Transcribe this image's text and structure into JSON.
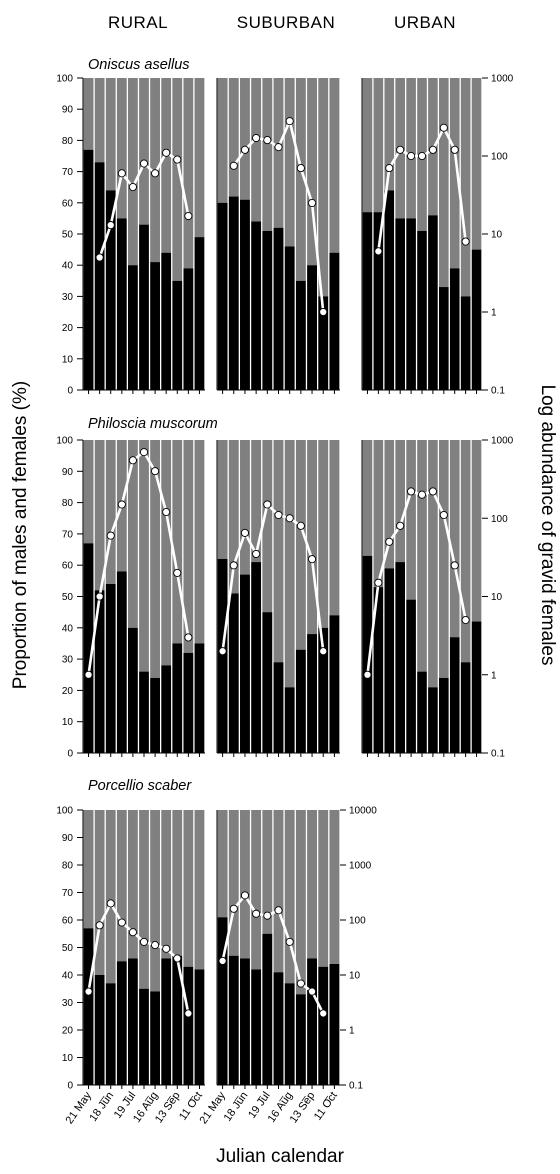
{
  "column_headers": [
    "RURAL",
    "SUBURBAN",
    "URBAN"
  ],
  "y_left_label": "Proportion of males and females  (%)",
  "y_right_label": "Log abundance of gravid females",
  "x_label": "Julian calendar",
  "colors": {
    "male_bar": "#000000",
    "female_background": "#808080",
    "gravid_line": "#ffffff",
    "gravid_marker": "#ffffff"
  },
  "chart_data": [
    {
      "species": "Oniscus asellus",
      "type": "bar+line",
      "ylim_left": [
        0,
        100
      ],
      "yticks_left": [
        "0",
        "10",
        "20",
        "30",
        "40",
        "50",
        "60",
        "70",
        "80",
        "90",
        "100"
      ],
      "ylim_right_log": [
        0.1,
        1000
      ],
      "yticks_right": [
        "0.1",
        "1",
        "10",
        "100",
        "1000"
      ],
      "panels": [
        {
          "site": "RURAL",
          "male_percent": [
            77,
            73,
            64,
            55,
            40,
            53,
            41,
            44,
            35,
            39,
            49
          ],
          "gravid_females": [
            null,
            5,
            13,
            60,
            40,
            80,
            60,
            110,
            90,
            17,
            null
          ]
        },
        {
          "site": "SUBURBAN",
          "male_percent": [
            60,
            62,
            61,
            54,
            51,
            52,
            46,
            35,
            40,
            30,
            44
          ],
          "gravid_females": [
            null,
            75,
            120,
            170,
            160,
            130,
            280,
            70,
            25,
            1,
            null
          ]
        },
        {
          "site": "URBAN",
          "male_percent": [
            57,
            57,
            64,
            55,
            55,
            51,
            56,
            33,
            39,
            30,
            45
          ],
          "gravid_females": [
            null,
            6,
            70,
            120,
            100,
            100,
            120,
            230,
            120,
            8,
            null
          ]
        }
      ]
    },
    {
      "species": "Philoscia muscorum",
      "type": "bar+line",
      "ylim_left": [
        0,
        100
      ],
      "yticks_left": [
        "0",
        "10",
        "20",
        "30",
        "40",
        "50",
        "60",
        "70",
        "80",
        "90",
        "100"
      ],
      "ylim_right_log": [
        0.1,
        1000
      ],
      "yticks_right": [
        "0.1",
        "1",
        "10",
        "100",
        "1000"
      ],
      "panels": [
        {
          "site": "RURAL",
          "male_percent": [
            67,
            52,
            54,
            58,
            40,
            26,
            24,
            28,
            35,
            32,
            35
          ],
          "gravid_females": [
            1,
            10,
            60,
            150,
            550,
            700,
            400,
            120,
            20,
            3,
            null
          ]
        },
        {
          "site": "SUBURBAN",
          "male_percent": [
            62,
            51,
            57,
            61,
            45,
            29,
            21,
            33,
            38,
            40,
            44
          ],
          "gravid_females": [
            2,
            25,
            65,
            35,
            150,
            110,
            100,
            80,
            30,
            2,
            null
          ]
        },
        {
          "site": "URBAN",
          "male_percent": [
            63,
            53,
            59,
            61,
            49,
            26,
            21,
            24,
            37,
            29,
            42
          ],
          "gravid_females": [
            1,
            15,
            50,
            80,
            220,
            200,
            220,
            110,
            25,
            5,
            null
          ]
        }
      ]
    },
    {
      "species": "Porcellio scaber",
      "type": "bar+line",
      "ylim_left": [
        0,
        100
      ],
      "yticks_left": [
        "0",
        "10",
        "20",
        "30",
        "40",
        "50",
        "60",
        "70",
        "80",
        "90",
        "100"
      ],
      "ylim_right_log": [
        0.1,
        10000
      ],
      "yticks_right": [
        "0.1",
        "1",
        "10",
        "100",
        "1000",
        "10000"
      ],
      "panels": [
        {
          "site": "RURAL",
          "male_percent": [
            57,
            40,
            37,
            45,
            46,
            35,
            34,
            46,
            47,
            43,
            42
          ],
          "gravid_females": [
            5,
            80,
            200,
            90,
            60,
            40,
            35,
            30,
            20,
            2,
            null
          ]
        },
        {
          "site": "SUBURBAN",
          "male_percent": [
            61,
            47,
            46,
            42,
            55,
            41,
            37,
            33,
            46,
            43,
            44
          ],
          "gravid_females": [
            18,
            160,
            280,
            130,
            120,
            150,
            40,
            7,
            5,
            2,
            null
          ]
        }
      ]
    }
  ],
  "x_tick_labels": [
    "21 May",
    "_",
    "18 Jun",
    "_",
    "19 Jul",
    "_",
    "16 Aug",
    "_",
    "13 Sep",
    "_",
    "11 Oct"
  ]
}
